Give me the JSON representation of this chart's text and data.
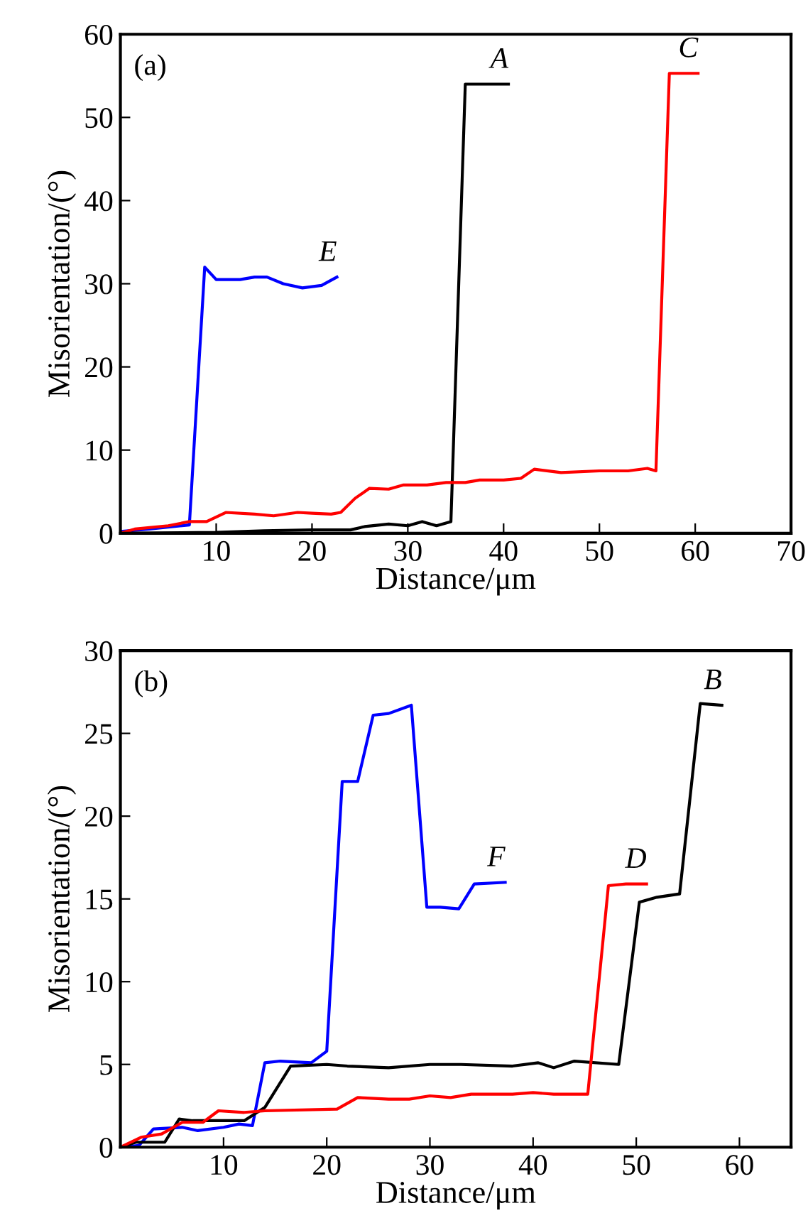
{
  "chart_data": [
    {
      "type": "line",
      "xlabel": "Distance/μm",
      "ylabel": "Misorientation/(°)",
      "annotations": [
        "(a)"
      ],
      "xlim": [
        0,
        70
      ],
      "ylim": [
        0,
        60
      ],
      "xticks": [
        10,
        20,
        30,
        40,
        50,
        60,
        70
      ],
      "yticks": [
        0,
        10,
        20,
        30,
        40,
        50,
        60
      ],
      "grid": false,
      "legend": false,
      "marker": "none",
      "line_style": "solid",
      "series": [
        {
          "name": "E",
          "color": "#0000ff",
          "x": [
            0,
            3,
            7.2,
            8.8,
            10,
            12.5,
            14,
            15.3,
            17,
            19,
            21,
            22.6
          ],
          "values": [
            0.2,
            0.5,
            1,
            32,
            30.5,
            30.5,
            30.8,
            30.8,
            30,
            29.5,
            29.8,
            30.8
          ]
        },
        {
          "name": "A",
          "color": "#000000",
          "x": [
            0,
            10,
            15,
            20,
            24,
            25.5,
            28,
            30,
            31.5,
            33,
            34.5,
            36,
            40.5
          ],
          "values": [
            0,
            0.1,
            0.3,
            0.4,
            0.4,
            0.8,
            1.1,
            0.9,
            1.4,
            0.9,
            1.4,
            54,
            54
          ]
        },
        {
          "name": "C",
          "color": "#ff0000",
          "x": [
            0,
            1.5,
            5,
            7.2,
            9,
            11,
            14,
            16,
            18.5,
            20,
            22,
            23,
            24.5,
            26,
            28,
            29.5,
            32,
            34,
            36,
            37.5,
            40,
            41.8,
            43.2,
            46,
            50,
            53,
            55,
            55.9,
            57.3,
            60.3
          ],
          "values": [
            0,
            0.5,
            0.9,
            1.4,
            1.4,
            2.5,
            2.3,
            2.1,
            2.5,
            2.4,
            2.3,
            2.5,
            4.2,
            5.4,
            5.3,
            5.8,
            5.8,
            6.1,
            6.1,
            6.4,
            6.4,
            6.6,
            7.7,
            7.3,
            7.5,
            7.5,
            7.8,
            7.5,
            55.3,
            55.3
          ]
        }
      ]
    },
    {
      "type": "line",
      "xlabel": "Distance/μm",
      "ylabel": "Misorientation/(°)",
      "annotations": [
        "(b)"
      ],
      "xlim": [
        0,
        65
      ],
      "ylim": [
        0,
        30
      ],
      "xticks": [
        10,
        20,
        30,
        40,
        50,
        60
      ],
      "yticks": [
        0,
        5,
        10,
        15,
        20,
        25,
        30
      ],
      "grid": false,
      "legend": false,
      "marker": "none",
      "line_style": "solid",
      "series": [
        {
          "name": "F",
          "color": "#0000ff",
          "x": [
            0,
            1.8,
            3.2,
            6,
            7.5,
            10,
            11.5,
            12.8,
            14,
            15.5,
            18.5,
            20,
            21.5,
            23,
            24.5,
            26,
            28.2,
            29.7,
            31,
            32.8,
            34.3,
            37.3
          ],
          "values": [
            0,
            0.1,
            1.1,
            1.2,
            1.0,
            1.2,
            1.4,
            1.3,
            5.1,
            5.2,
            5.1,
            5.8,
            22.1,
            22.1,
            26.1,
            26.2,
            26.7,
            14.5,
            14.5,
            14.4,
            15.9,
            16
          ]
        },
        {
          "name": "B",
          "color": "#000000",
          "x": [
            0,
            1.5,
            4.3,
            5.7,
            7,
            12,
            14,
            16.5,
            20,
            22,
            26,
            30,
            33,
            38,
            40.5,
            42,
            44,
            48.3,
            50.3,
            52,
            54.2,
            56.2,
            58.3
          ],
          "values": [
            0,
            0.3,
            0.3,
            1.7,
            1.6,
            1.6,
            2.4,
            4.9,
            5.0,
            4.9,
            4.8,
            5.0,
            5.0,
            4.9,
            5.1,
            4.8,
            5.2,
            5.0,
            14.8,
            15.1,
            15.3,
            26.8,
            26.7
          ]
        },
        {
          "name": "D",
          "color": "#ff0000",
          "x": [
            0,
            2,
            4,
            6,
            8,
            9.5,
            12,
            14,
            21,
            23,
            26,
            28,
            30,
            32,
            34,
            38,
            40,
            42,
            45.3,
            47.3,
            49,
            51
          ],
          "values": [
            0,
            0.6,
            0.8,
            1.5,
            1.5,
            2.2,
            2.1,
            2.2,
            2.3,
            3.0,
            2.9,
            2.9,
            3.1,
            3.0,
            3.2,
            3.2,
            3.3,
            3.2,
            3.2,
            15.8,
            15.9,
            15.9
          ]
        }
      ]
    }
  ]
}
